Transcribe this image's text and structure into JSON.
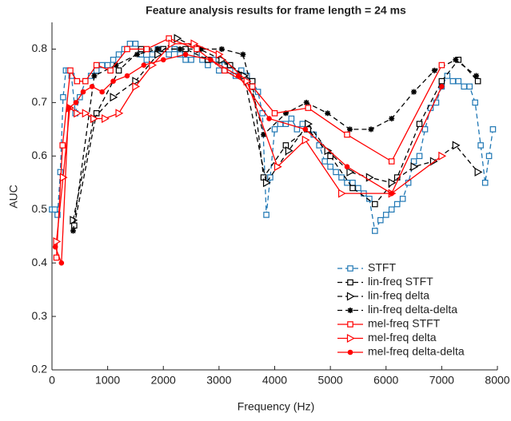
{
  "chart_data": {
    "type": "line",
    "title": "Feature analysis results for frame length = 24 ms",
    "x_label": "Frequency (Hz)",
    "y_label": "AUC",
    "xlim": [
      0,
      8000
    ],
    "xticks": [
      0,
      1000,
      2000,
      3000,
      4000,
      5000,
      6000,
      7000,
      8000
    ],
    "ylim": [
      0.2,
      0.85
    ],
    "yticks": [
      0.2,
      0.3,
      0.4,
      0.5,
      0.6,
      0.7,
      0.8
    ],
    "grid": false,
    "legend": "lower right",
    "series": [
      {
        "name": "STFT",
        "color": "#1f77b4",
        "dash": true,
        "marker": "square",
        "x": [
          0,
          50,
          100,
          150,
          200,
          250,
          300,
          350,
          420,
          500,
          600,
          700,
          800,
          900,
          1000,
          1100,
          1200,
          1300,
          1400,
          1500,
          1600,
          1700,
          1800,
          1900,
          2000,
          2100,
          2200,
          2300,
          2400,
          2500,
          2600,
          2700,
          2800,
          2900,
          3000,
          3100,
          3200,
          3300,
          3400,
          3500,
          3600,
          3700,
          3780,
          3850,
          3920,
          4000,
          4100,
          4200,
          4300,
          4400,
          4500,
          4600,
          4700,
          4800,
          4900,
          5000,
          5100,
          5200,
          5300,
          5400,
          5500,
          5600,
          5700,
          5800,
          5900,
          6000,
          6100,
          6200,
          6300,
          6400,
          6500,
          6600,
          6700,
          6800,
          6900,
          7000,
          7100,
          7200,
          7300,
          7400,
          7500,
          7600,
          7700,
          7780,
          7850,
          7920
        ],
        "values": [
          0.5,
          0.5,
          0.49,
          0.57,
          0.71,
          0.76,
          0.76,
          0.75,
          0.68,
          0.71,
          0.74,
          0.75,
          0.76,
          0.77,
          0.77,
          0.78,
          0.79,
          0.8,
          0.81,
          0.81,
          0.79,
          0.78,
          0.79,
          0.8,
          0.8,
          0.79,
          0.8,
          0.79,
          0.78,
          0.78,
          0.79,
          0.78,
          0.77,
          0.78,
          0.76,
          0.77,
          0.76,
          0.75,
          0.76,
          0.75,
          0.74,
          0.72,
          0.68,
          0.49,
          0.56,
          0.65,
          0.66,
          0.66,
          0.67,
          0.65,
          0.66,
          0.65,
          0.64,
          0.62,
          0.59,
          0.58,
          0.57,
          0.56,
          0.55,
          0.55,
          0.54,
          0.53,
          0.52,
          0.46,
          0.48,
          0.49,
          0.5,
          0.51,
          0.52,
          0.55,
          0.59,
          0.6,
          0.65,
          0.69,
          0.7,
          0.73,
          0.75,
          0.74,
          0.74,
          0.73,
          0.73,
          0.7,
          0.62,
          0.55,
          0.6,
          0.65
        ]
      },
      {
        "name": "lin-freq STFT",
        "color": "#000000",
        "dash": true,
        "marker": "square",
        "x": [
          400,
          800,
          1200,
          1600,
          2000,
          2400,
          2800,
          3200,
          3600,
          3800,
          4200,
          4600,
          5000,
          5400,
          5800,
          6200,
          6600,
          7000,
          7300,
          7650
        ],
        "values": [
          0.47,
          0.68,
          0.76,
          0.8,
          0.8,
          0.8,
          0.78,
          0.77,
          0.74,
          0.56,
          0.62,
          0.65,
          0.6,
          0.54,
          0.51,
          0.56,
          0.66,
          0.74,
          0.78,
          0.74
        ]
      },
      {
        "name": "lin-freq delta",
        "color": "#000000",
        "dash": true,
        "marker": "triangle",
        "x": [
          380,
          750,
          1100,
          1500,
          1900,
          2250,
          2650,
          3050,
          3450,
          3850,
          4250,
          4600,
          4950,
          5350,
          5700,
          6100,
          6500,
          6850,
          7250,
          7650
        ],
        "values": [
          0.48,
          0.67,
          0.71,
          0.74,
          0.79,
          0.82,
          0.8,
          0.78,
          0.75,
          0.55,
          0.61,
          0.66,
          0.61,
          0.57,
          0.56,
          0.55,
          0.58,
          0.59,
          0.62,
          0.57
        ]
      },
      {
        "name": "lin-freq delta-delta",
        "color": "#000000",
        "dash": true,
        "marker": "star",
        "x": [
          380,
          760,
          1150,
          1530,
          1900,
          2300,
          2680,
          3050,
          3430,
          3800,
          4200,
          4570,
          4950,
          5350,
          5730,
          6100,
          6500,
          6870,
          7250,
          7620
        ],
        "values": [
          0.46,
          0.75,
          0.77,
          0.79,
          0.8,
          0.8,
          0.8,
          0.8,
          0.79,
          0.64,
          0.68,
          0.7,
          0.68,
          0.65,
          0.65,
          0.67,
          0.72,
          0.76,
          0.78,
          0.75
        ]
      },
      {
        "name": "mel-freq STFT",
        "color": "#ff0000",
        "dash": false,
        "marker": "square",
        "x": [
          80,
          190,
          330,
          450,
          600,
          800,
          1050,
          1350,
          1700,
          2100,
          2600,
          3100,
          3600,
          4000,
          4600,
          5300,
          6100,
          7000
        ],
        "values": [
          0.41,
          0.62,
          0.76,
          0.74,
          0.74,
          0.77,
          0.76,
          0.8,
          0.8,
          0.82,
          0.8,
          0.76,
          0.73,
          0.68,
          0.69,
          0.64,
          0.59,
          0.77
        ]
      },
      {
        "name": "mel-freq delta",
        "color": "#ff0000",
        "dash": false,
        "marker": "triangle",
        "x": [
          80,
          200,
          320,
          450,
          600,
          750,
          950,
          1200,
          1500,
          1800,
          2150,
          2550,
          3000,
          3500,
          4050,
          4550,
          5200,
          6100,
          7000
        ],
        "values": [
          0.44,
          0.56,
          0.69,
          0.68,
          0.68,
          0.67,
          0.67,
          0.68,
          0.73,
          0.77,
          0.81,
          0.81,
          0.79,
          0.74,
          0.58,
          0.63,
          0.53,
          0.53,
          0.6
        ]
      },
      {
        "name": "mel-freq delta-delta",
        "color": "#ff0000",
        "dash": false,
        "marker": "dot",
        "x": [
          60,
          170,
          300,
          430,
          560,
          720,
          900,
          1100,
          1350,
          1650,
          2000,
          2400,
          2850,
          3350,
          3900,
          4550,
          5300,
          6100,
          7000
        ],
        "values": [
          0.43,
          0.4,
          0.69,
          0.7,
          0.72,
          0.73,
          0.72,
          0.74,
          0.75,
          0.77,
          0.78,
          0.79,
          0.78,
          0.75,
          0.67,
          0.65,
          0.58,
          0.53,
          0.73
        ]
      }
    ]
  }
}
